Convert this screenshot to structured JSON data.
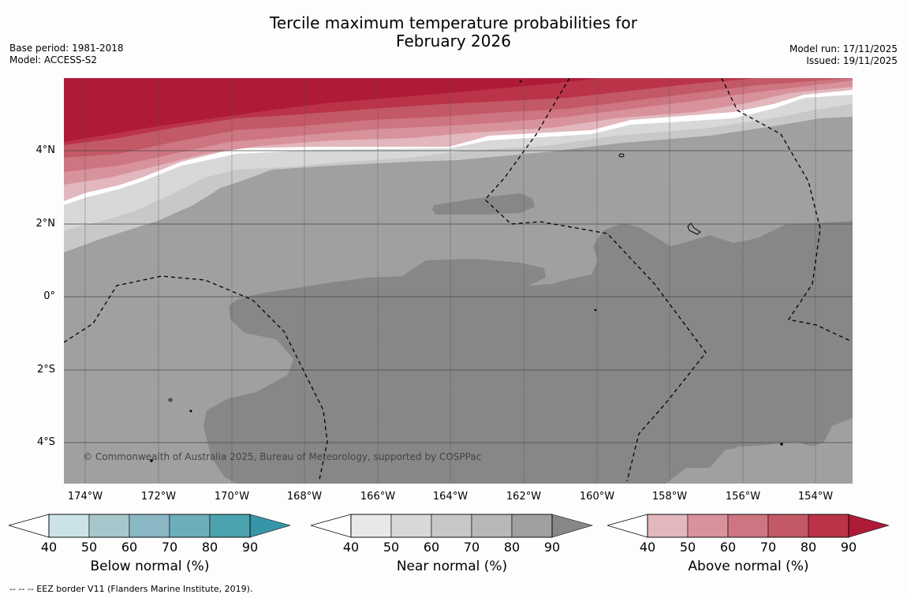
{
  "title_line1": "Tercile maximum temperature probabilities for",
  "title_line2": "February 2026",
  "meta_left": {
    "base_period": "Base period: 1981-2018",
    "model": "Model: ACCESS-S2"
  },
  "meta_right": {
    "model_run": "Model run: 17/11/2025",
    "issued": "Issued: 19/11/2025"
  },
  "latitude_labels": [
    "4°N",
    "2°N",
    "0°",
    "2°S",
    "4°S"
  ],
  "longitude_labels": [
    "174°W",
    "172°W",
    "170°W",
    "168°W",
    "166°W",
    "164°W",
    "162°W",
    "160°W",
    "158°W",
    "156°W",
    "154°W"
  ],
  "copyright": "© Commonwealth of Australia 2025, Bureau of Meteorology, supported by COSPPac",
  "footer": "--  --  -- EEZ border V11 (Flanders Marine Institute, 2019).",
  "colorbars": [
    {
      "name": "below",
      "title": "Below normal (%)",
      "ticks": [
        "40",
        "50",
        "60",
        "70",
        "80",
        "90"
      ],
      "colors": [
        "#cbe2e8",
        "#a8c7cc",
        "#8ab8c4",
        "#6eaebb",
        "#4da2b0",
        "#3795a8"
      ]
    },
    {
      "name": "near",
      "title": "Near normal (%)",
      "ticks": [
        "40",
        "50",
        "60",
        "70",
        "80",
        "90"
      ],
      "colors": [
        "#e8e8e8",
        "#d8d8d8",
        "#c8c8c8",
        "#b8b8b8",
        "#a0a0a0",
        "#878787"
      ]
    },
    {
      "name": "above",
      "title": "Above normal (%)",
      "ticks": [
        "40",
        "50",
        "60",
        "70",
        "80",
        "90"
      ],
      "colors": [
        "#e2b7bd",
        "#d8929b",
        "#cd7580",
        "#c35966",
        "#ba3349",
        "#ae1a38"
      ]
    }
  ]
}
